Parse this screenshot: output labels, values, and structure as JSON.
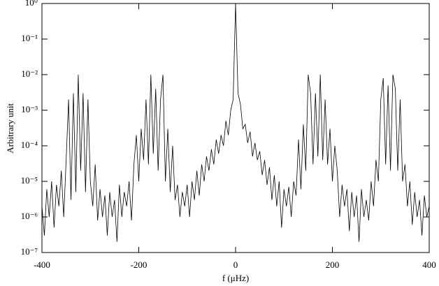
{
  "chart_data": {
    "type": "line",
    "xlabel": "f (μHz)",
    "ylabel": "Arbitrary unit",
    "yscale": "log",
    "color": "#000000",
    "xlim": [
      -400,
      400
    ],
    "ylim": [
      1e-07,
      1
    ],
    "xticks": [
      -400,
      -200,
      0,
      200,
      400
    ],
    "yticks": [
      {
        "value": 1e-07,
        "label": "10⁻⁷"
      },
      {
        "value": 1e-06,
        "label": "10⁻⁶"
      },
      {
        "value": 1e-05,
        "label": "10⁻⁵"
      },
      {
        "value": 0.0001,
        "label": "10⁻⁴"
      },
      {
        "value": 0.001,
        "label": "10⁻³"
      },
      {
        "value": 0.01,
        "label": "10⁻²"
      },
      {
        "value": 0.1,
        "label": "10⁻¹"
      },
      {
        "value": 1,
        "label": "10⁰"
      }
    ],
    "x": [
      -400,
      -395,
      -390,
      -385,
      -380,
      -375,
      -370,
      -365,
      -360,
      -355,
      -350,
      -345,
      -340,
      -335,
      -330,
      -325,
      -320,
      -315,
      -310,
      -305,
      -300,
      -295,
      -290,
      -285,
      -280,
      -275,
      -270,
      -265,
      -260,
      -255,
      -250,
      -245,
      -240,
      -235,
      -230,
      -225,
      -220,
      -215,
      -210,
      -205,
      -200,
      -195,
      -190,
      -185,
      -180,
      -175,
      -170,
      -165,
      -160,
      -155,
      -150,
      -145,
      -140,
      -135,
      -130,
      -125,
      -120,
      -115,
      -110,
      -105,
      -100,
      -95,
      -90,
      -85,
      -80,
      -75,
      -70,
      -65,
      -60,
      -55,
      -50,
      -45,
      -40,
      -35,
      -30,
      -25,
      -20,
      -15,
      -10,
      -5,
      0,
      5,
      10,
      15,
      20,
      25,
      30,
      35,
      40,
      45,
      50,
      55,
      60,
      65,
      70,
      75,
      80,
      85,
      90,
      95,
      100,
      105,
      110,
      115,
      120,
      125,
      130,
      135,
      140,
      145,
      150,
      155,
      160,
      165,
      170,
      175,
      180,
      185,
      190,
      195,
      200,
      205,
      210,
      215,
      220,
      225,
      230,
      235,
      240,
      245,
      250,
      255,
      260,
      265,
      270,
      275,
      280,
      285,
      290,
      295,
      300,
      305,
      310,
      315,
      320,
      325,
      330,
      335,
      340,
      345,
      350,
      355,
      360,
      365,
      370,
      375,
      380,
      385,
      390,
      395,
      400
    ],
    "values": [
      2e-06,
      3e-07,
      6e-06,
      1e-06,
      1e-05,
      5e-07,
      8e-06,
      2e-06,
      2e-05,
      1e-06,
      4e-05,
      0.002,
      3e-06,
      0.003,
      5e-06,
      0.01,
      2e-05,
      0.003,
      5e-06,
      0.002,
      1e-05,
      2e-06,
      3e-05,
      8e-07,
      6e-06,
      1e-06,
      4e-06,
      3e-07,
      5e-06,
      1e-06,
      3e-06,
      2e-07,
      8e-06,
      1e-06,
      5e-06,
      2e-06,
      1e-05,
      8e-07,
      3e-05,
      0.0002,
      1e-05,
      0.0003,
      4e-05,
      0.002,
      3e-05,
      0.01,
      6e-05,
      0.004,
      2e-05,
      0.002,
      0.01,
      1e-05,
      0.0003,
      5e-06,
      0.0001,
      3e-06,
      8e-06,
      1e-06,
      5e-06,
      2e-06,
      8e-06,
      1e-06,
      1e-05,
      3e-06,
      2e-05,
      4e-06,
      3e-05,
      1e-05,
      5e-05,
      2e-05,
      8e-05,
      3e-05,
      0.00015,
      6e-05,
      0.0002,
      0.0001,
      0.0005,
      0.0002,
      0.001,
      0.002,
      1,
      0.003,
      0.0015,
      0.0003,
      0.0004,
      0.00012,
      0.00025,
      5e-05,
      0.00012,
      4e-05,
      7e-05,
      1.5e-05,
      4e-05,
      8e-06,
      2.5e-05,
      3e-06,
      1.5e-05,
      2e-06,
      1e-05,
      5e-07,
      6e-06,
      2e-06,
      7e-06,
      1e-06,
      1e-05,
      4e-06,
      0.00015,
      6e-06,
      0.0004,
      2e-05,
      0.01,
      0.003,
      3e-05,
      0.003,
      5e-05,
      0.01,
      4e-05,
      0.002,
      3e-05,
      0.0003,
      1e-05,
      0.0001,
      2e-05,
      1e-06,
      8e-06,
      2e-06,
      6e-06,
      4e-07,
      5e-06,
      1e-06,
      4e-06,
      2e-07,
      6e-06,
      1e-06,
      3e-06,
      8e-07,
      1e-05,
      2e-06,
      4e-05,
      1e-05,
      0.002,
      0.008,
      3e-05,
      0.005,
      2e-05,
      0.01,
      0.004,
      2e-05,
      0.002,
      1e-05,
      3e-05,
      2e-06,
      1e-05,
      6e-07,
      5e-06,
      1e-06,
      3e-06,
      3e-07,
      4e-06,
      1e-06,
      2e-06
    ]
  }
}
